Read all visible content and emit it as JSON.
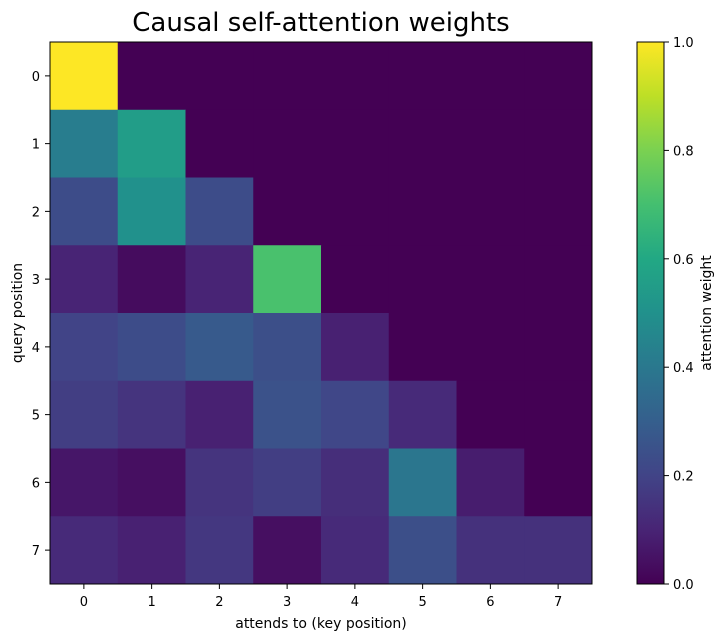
{
  "chart_data": {
    "type": "heatmap",
    "title": "Causal self-attention weights",
    "xlabel": "attends to (key position)",
    "ylabel": "query position",
    "x_categories": [
      "0",
      "1",
      "2",
      "3",
      "4",
      "5",
      "6",
      "7"
    ],
    "y_categories": [
      "0",
      "1",
      "2",
      "3",
      "4",
      "5",
      "6",
      "7"
    ],
    "values": [
      [
        1.0,
        0.0,
        0.0,
        0.0,
        0.0,
        0.0,
        0.0,
        0.0
      ],
      [
        0.42,
        0.55,
        0.0,
        0.0,
        0.0,
        0.0,
        0.0,
        0.0
      ],
      [
        0.23,
        0.5,
        0.23,
        0.0,
        0.0,
        0.0,
        0.0,
        0.0
      ],
      [
        0.1,
        0.03,
        0.1,
        0.71,
        0.0,
        0.0,
        0.0,
        0.0
      ],
      [
        0.2,
        0.23,
        0.28,
        0.24,
        0.09,
        0.0,
        0.0,
        0.0
      ],
      [
        0.18,
        0.15,
        0.09,
        0.25,
        0.21,
        0.12,
        0.0,
        0.0
      ],
      [
        0.06,
        0.04,
        0.15,
        0.18,
        0.13,
        0.39,
        0.08,
        0.0
      ],
      [
        0.12,
        0.09,
        0.16,
        0.04,
        0.12,
        0.24,
        0.14,
        0.14
      ]
    ],
    "colorbar": {
      "label": "attention weight",
      "range": [
        0.0,
        1.0
      ],
      "ticks": [
        "0.0",
        "0.2",
        "0.4",
        "0.6",
        "0.8",
        "1.0"
      ],
      "colormap": "viridis"
    },
    "grid": false
  }
}
